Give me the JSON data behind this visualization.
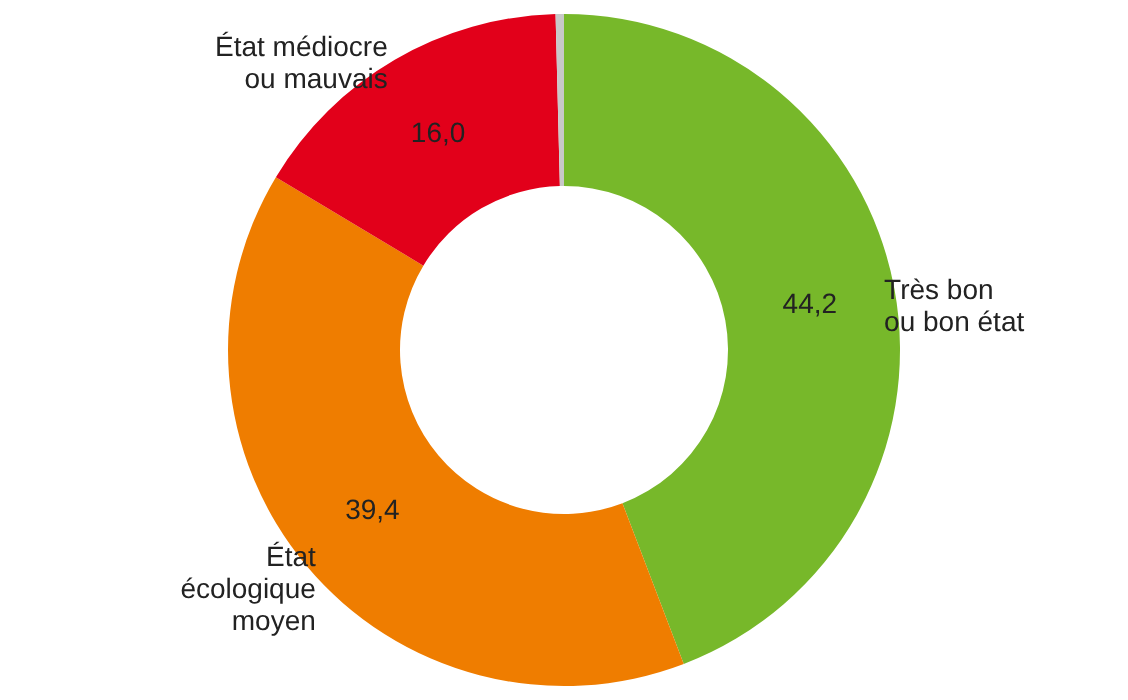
{
  "chart_data": {
    "type": "donut",
    "categories": [
      "Très bon\nou bon état",
      "État\nécologique\nmoyen",
      "État médiocre\nou mauvais",
      null
    ],
    "values": [
      44.2,
      39.4,
      16.0,
      0.4
    ],
    "colors": [
      "#77b82a",
      "#ef7d00",
      "#e2001a",
      "#c8c8c8"
    ],
    "value_labels": [
      "44,2",
      "39,4",
      "16,0",
      null
    ]
  }
}
